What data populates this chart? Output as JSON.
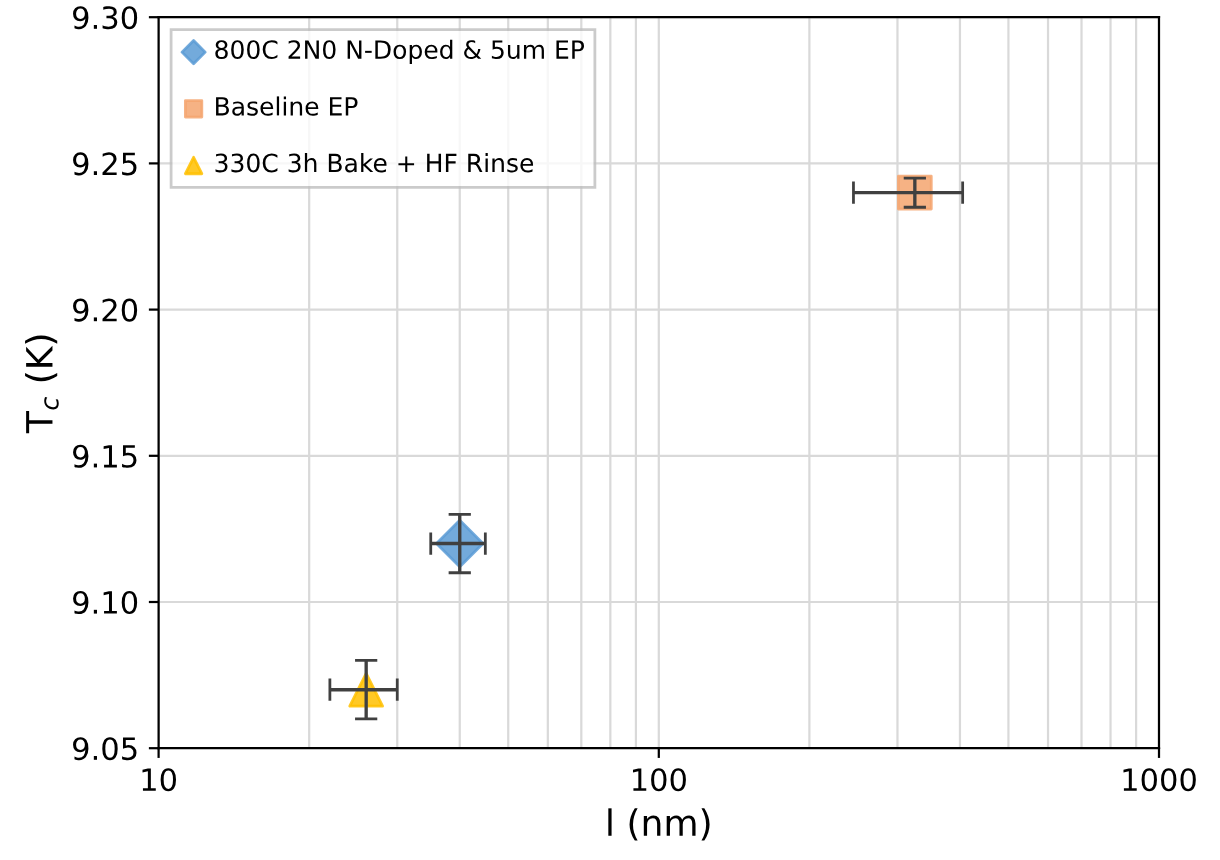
{
  "chart_data": {
    "type": "scatter",
    "xlabel": "l (nm)",
    "ylabel": "T$_{c}$ (K)",
    "log": "x",
    "xlim": [
      10,
      1000
    ],
    "xticks": [
      10,
      100,
      1000
    ],
    "ylim": [
      9.05,
      9.3
    ],
    "yticks": [
      {
        "value": 9.05,
        "label": "9.05"
      },
      {
        "value": 9.1,
        "label": "9.10"
      },
      {
        "value": 9.15,
        "label": "9.15"
      },
      {
        "value": 9.2,
        "label": "9.20"
      },
      {
        "value": 9.25,
        "label": "9.25"
      },
      {
        "value": 9.3,
        "label": "9.30"
      }
    ],
    "grid": true,
    "legend": "top left",
    "series": [
      {
        "name": "800C 2N0 N-Doped & 5um EP",
        "color": "#5b9bd5",
        "marker": "diamond",
        "x": [
          40
        ],
        "values": [
          9.12
        ],
        "errors": [
          0.01
        ],
        "xerrors": [
          5
        ]
      },
      {
        "name": "Baseline EP",
        "color": "#f4a46e",
        "marker": "square",
        "x": [
          325
        ],
        "values": [
          9.24
        ],
        "errors": [
          0.005
        ],
        "xerrors": [
          80
        ]
      },
      {
        "name": "330C 3h Bake + HF Rinse",
        "color": "#ffc000",
        "marker": "triangle",
        "x": [
          26
        ],
        "values": [
          9.07
        ],
        "errors": [
          0.01
        ],
        "xerrors": [
          4
        ]
      }
    ]
  }
}
